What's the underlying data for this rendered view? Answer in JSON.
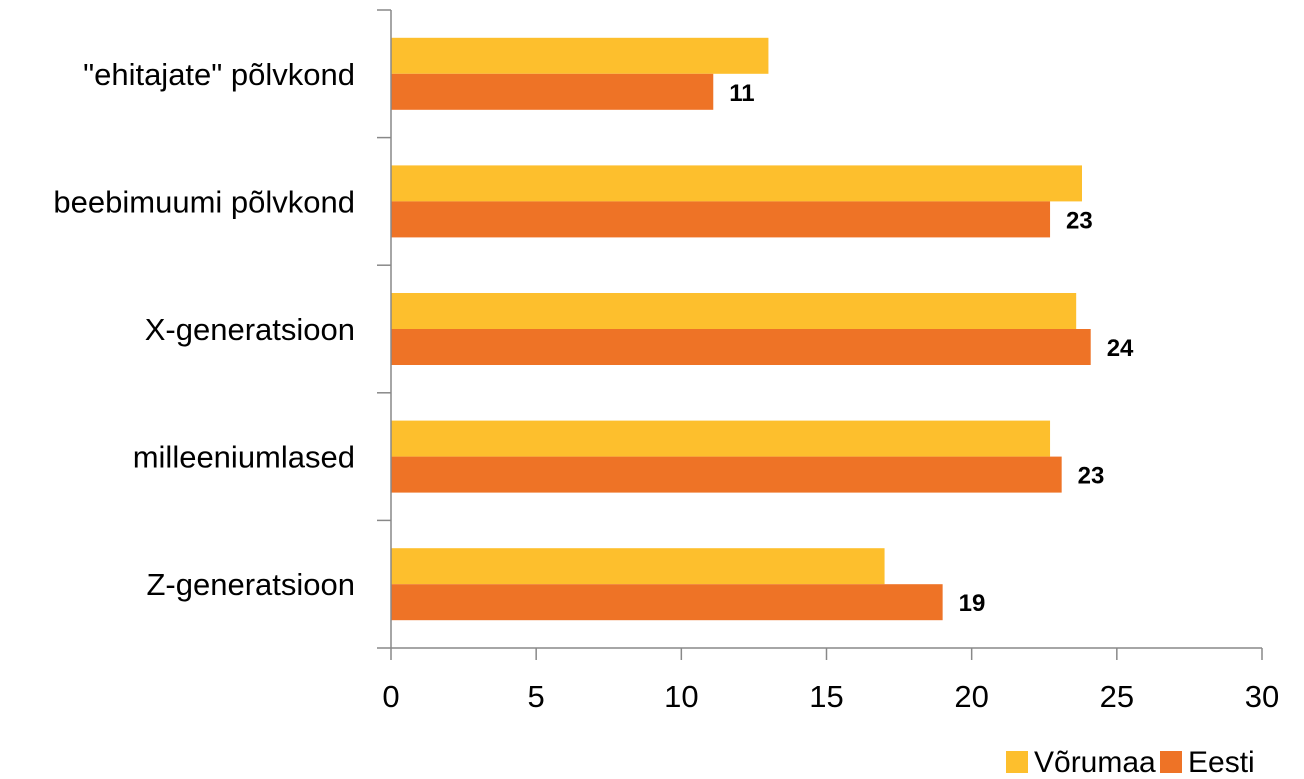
{
  "chart_data": {
    "type": "bar",
    "orientation": "horizontal",
    "title": "",
    "xlabel": "",
    "ylabel": "",
    "categories": [
      "\"ehitajate\" põlvkond",
      "beebimuumi põlvkond",
      "X-generatsioon",
      "milleeniumlased",
      "Z-generatsioon"
    ],
    "series": [
      {
        "name": "Võrumaa",
        "color": "#FDBF2D",
        "values": [
          13,
          23.8,
          23.6,
          22.7,
          17
        ]
      },
      {
        "name": "Eesti",
        "color": "#EE7326",
        "values": [
          11.1,
          22.7,
          24.1,
          23.1,
          19
        ]
      }
    ],
    "data_labels": {
      "series": "Eesti",
      "labels": [
        "11",
        "23",
        "24",
        "23",
        "19"
      ]
    },
    "xlim": [
      0,
      30
    ],
    "x_ticks": [
      0,
      5,
      10,
      15,
      20,
      25,
      30
    ],
    "grid": false,
    "legend_position": "bottom-right"
  }
}
